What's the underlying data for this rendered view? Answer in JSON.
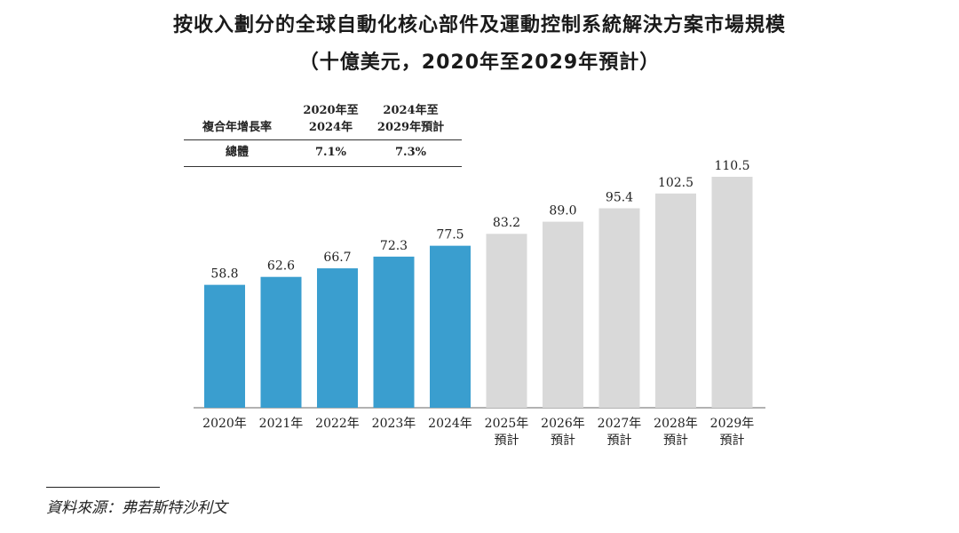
{
  "title": {
    "line1": "按收入劃分的全球自動化核心部件及運動控制系統解決方案市場規模",
    "line2": "（十億美元，2020年至2029年預計）"
  },
  "cagr_table": {
    "row_label": "複合年增長率",
    "col1_line1": "2020年至",
    "col1_line2": "2024年",
    "col2_line1": "2024年至",
    "col2_line2": "2029年預計",
    "total_label": "總體",
    "total_col1": "7.1%",
    "total_col2": "7.3%"
  },
  "source": "資料來源：弗若斯特沙利文",
  "colors": {
    "actual": "#3a9ecf",
    "forecast": "#d9d9d9",
    "axis": "#999999"
  },
  "chart_data": {
    "type": "bar",
    "title": "按收入劃分的全球自動化核心部件及運動控制系統解決方案市場規模",
    "subtitle": "（十億美元，2020年至2029年預計）",
    "categories": [
      [
        "2020年"
      ],
      [
        "2021年"
      ],
      [
        "2022年"
      ],
      [
        "2023年"
      ],
      [
        "2024年"
      ],
      [
        "2025年",
        "預計"
      ],
      [
        "2026年",
        "預計"
      ],
      [
        "2027年",
        "預計"
      ],
      [
        "2028年",
        "預計"
      ],
      [
        "2029年",
        "預計"
      ]
    ],
    "values": [
      58.8,
      62.6,
      66.7,
      72.3,
      77.5,
      83.2,
      89.0,
      95.4,
      102.5,
      110.5
    ],
    "value_labels": [
      "58.8",
      "62.6",
      "66.7",
      "72.3",
      "77.5",
      "83.2",
      "89.0",
      "95.4",
      "102.5",
      "110.5"
    ],
    "forecast": [
      false,
      false,
      false,
      false,
      false,
      true,
      true,
      true,
      true,
      true
    ],
    "xlabel": "",
    "ylabel": "",
    "ylim": [
      0,
      115
    ],
    "grid": false
  }
}
